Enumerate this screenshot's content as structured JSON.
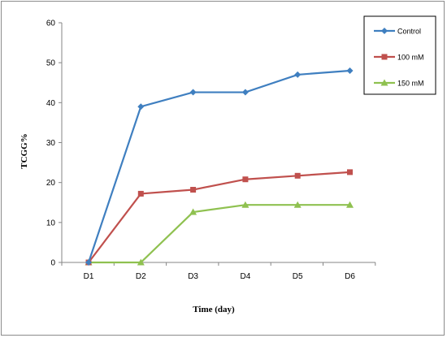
{
  "chart_data": {
    "type": "line",
    "title": "",
    "xlabel": "Time (day)",
    "ylabel": "TCGG%",
    "categories": [
      "D1",
      "D2",
      "D3",
      "D4",
      "D5",
      "D6"
    ],
    "ylim": [
      0,
      60
    ],
    "yticks": [
      0,
      10,
      20,
      30,
      40,
      50,
      60
    ],
    "grid": false,
    "legend_position": "top-right",
    "series": [
      {
        "name": "Control",
        "color": "#3f7fc0",
        "marker": "diamond",
        "values": [
          0,
          39,
          42.6,
          42.6,
          47,
          48
        ]
      },
      {
        "name": "100 mM",
        "color": "#c0504d",
        "marker": "square",
        "values": [
          0,
          17.2,
          18.2,
          20.8,
          21.7,
          22.6
        ]
      },
      {
        "name": "150 mM",
        "color": "#8fc150",
        "marker": "triangle",
        "values": [
          0,
          0,
          12.6,
          14.4,
          14.4,
          14.4
        ]
      }
    ]
  }
}
